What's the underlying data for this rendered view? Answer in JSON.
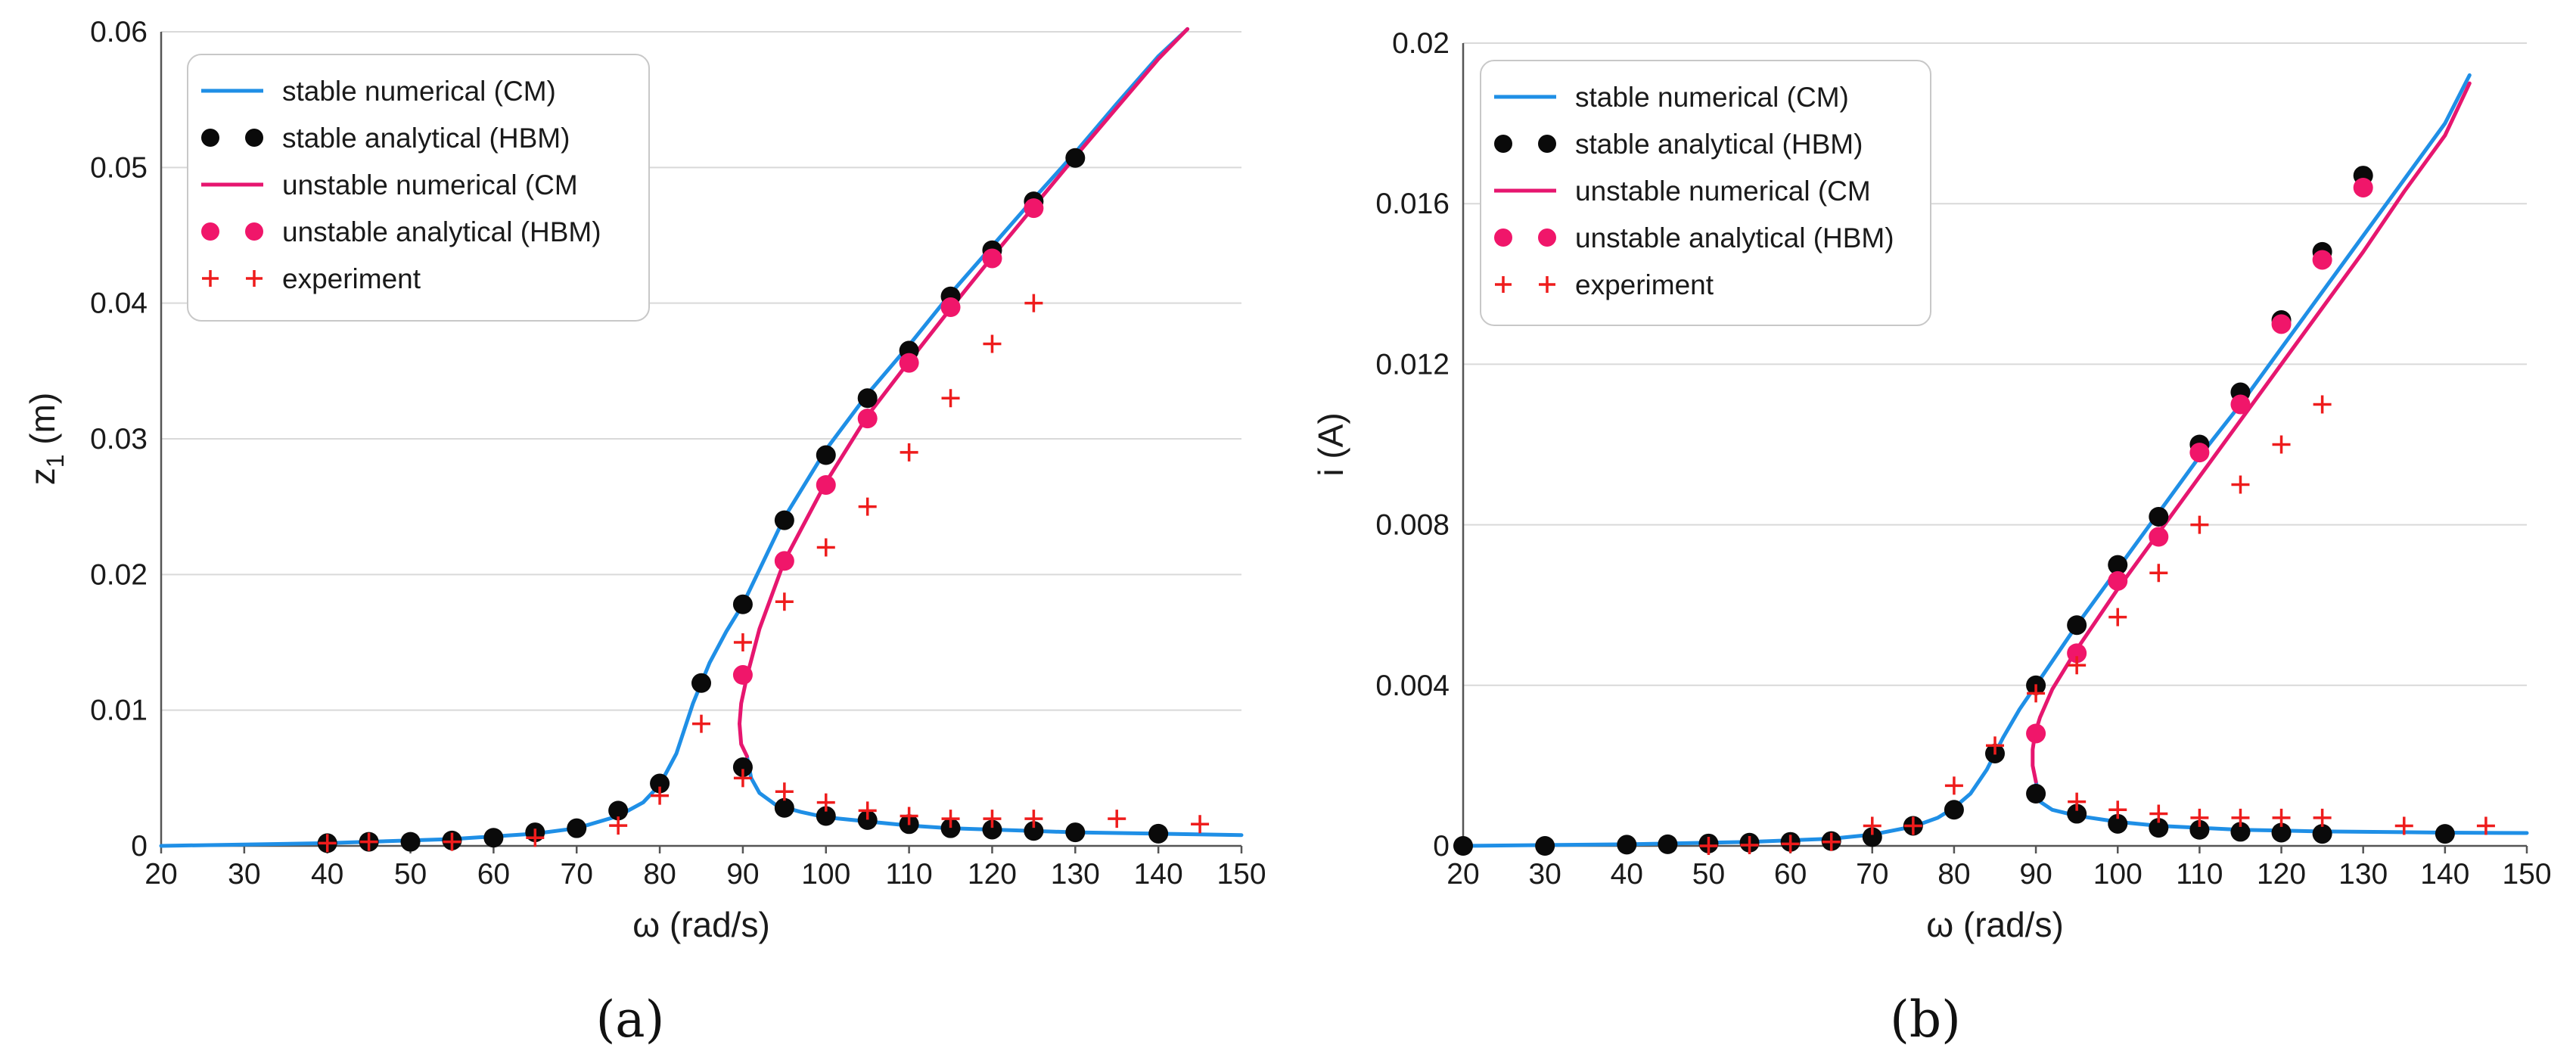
{
  "colors": {
    "stable_line": "#1f8fe6",
    "unstable_line": "#e6166f",
    "stable_dot": "#0a0a0a",
    "unstable_dot": "#f0166a",
    "experiment": "#ee1c1c",
    "grid": "#d9d9d9"
  },
  "legend": {
    "stable_numerical": "stable numerical (CM)",
    "stable_analytical": "stable analytical (HBM)",
    "unstable_numerical": "unstable numerical (CM",
    "unstable_analytical": "unstable analytical (HBM)",
    "experiment": "experiment"
  },
  "chart_data": [
    {
      "id": "a",
      "type": "line",
      "panel_label": "(a)",
      "xlabel": "ω (rad/s)",
      "ylabel_main": "z",
      "ylabel_sub": "1",
      "ylabel_rest": " (m)",
      "xlim": [
        20,
        150
      ],
      "ylim": [
        0,
        0.06
      ],
      "xticks": [
        20,
        30,
        40,
        50,
        60,
        70,
        80,
        90,
        100,
        110,
        120,
        130,
        140,
        150
      ],
      "xtick_labels": [
        "20",
        "30",
        "40",
        "50",
        "60",
        "70",
        "80",
        "90",
        "100",
        "110",
        "120",
        "130",
        "140",
        "150"
      ],
      "yticks": [
        0,
        0.01,
        0.02,
        0.03,
        0.04,
        0.05,
        0.06
      ],
      "ytick_labels": [
        "0",
        "0.01",
        "0.02",
        "0.03",
        "0.04",
        "0.05",
        "0.06"
      ],
      "series": [
        {
          "name": "stable numerical (CM)",
          "kind": "line",
          "color_key": "stable_line",
          "x": [
            20,
            40,
            55,
            65,
            70,
            75,
            78,
            80,
            82,
            84,
            86,
            88,
            90,
            95,
            100,
            105,
            110,
            115,
            120,
            125,
            130,
            135,
            140,
            143.5
          ],
          "y": [
            0,
            0.0002,
            0.0005,
            0.0009,
            0.0013,
            0.0022,
            0.0032,
            0.0045,
            0.0068,
            0.0105,
            0.0135,
            0.0158,
            0.0178,
            0.0242,
            0.0292,
            0.0333,
            0.0369,
            0.0407,
            0.0442,
            0.0477,
            0.0511,
            0.0547,
            0.0582,
            0.0602
          ]
        },
        {
          "name": "stable numerical (CM) lower",
          "kind": "line",
          "color_key": "stable_line",
          "x": [
            90.5,
            91,
            92,
            94,
            97,
            100,
            105,
            110,
            115,
            120,
            125,
            130,
            140,
            150
          ],
          "y": [
            0.0066,
            0.005,
            0.0039,
            0.003,
            0.0025,
            0.0021,
            0.0018,
            0.0015,
            0.0013,
            0.0012,
            0.0011,
            0.001,
            0.0009,
            0.0008
          ]
        },
        {
          "name": "unstable numerical (CM",
          "kind": "line",
          "color_key": "unstable_line",
          "x": [
            90.5,
            89.8,
            89.6,
            89.8,
            90.5,
            92,
            95,
            100,
            105,
            110,
            115,
            120,
            125,
            130,
            135,
            140,
            143.5
          ],
          "y": [
            0.0066,
            0.0075,
            0.009,
            0.0105,
            0.0125,
            0.016,
            0.021,
            0.0268,
            0.0317,
            0.0357,
            0.0396,
            0.0434,
            0.0471,
            0.0508,
            0.0544,
            0.058,
            0.0602
          ]
        },
        {
          "name": "stable analytical (HBM)",
          "kind": "dots",
          "color_key": "stable_dot",
          "x": [
            40,
            45,
            50,
            55,
            60,
            65,
            70,
            75,
            80,
            85,
            90,
            95,
            100,
            105,
            110,
            115,
            120,
            125,
            130,
            90,
            95,
            100,
            105,
            110,
            115,
            120,
            125,
            130,
            140
          ],
          "y": [
            0.0002,
            0.0003,
            0.0003,
            0.0004,
            0.0006,
            0.001,
            0.0013,
            0.0026,
            0.0046,
            0.012,
            0.0178,
            0.024,
            0.0288,
            0.033,
            0.0365,
            0.0405,
            0.0439,
            0.0475,
            0.0507,
            0.0058,
            0.0028,
            0.0022,
            0.0019,
            0.0016,
            0.0013,
            0.0012,
            0.0011,
            0.001,
            0.0009
          ]
        },
        {
          "name": "unstable analytical (HBM)",
          "kind": "dots",
          "color_key": "unstable_dot",
          "x": [
            90,
            95,
            100,
            105,
            110,
            115,
            120,
            125
          ],
          "y": [
            0.0126,
            0.021,
            0.0266,
            0.0315,
            0.0356,
            0.0397,
            0.0433,
            0.047
          ]
        },
        {
          "name": "experiment",
          "kind": "plus",
          "color_key": "experiment",
          "x": [
            40,
            45,
            55,
            65,
            75,
            80,
            85,
            90,
            90,
            95,
            95,
            100,
            100,
            105,
            105,
            110,
            110,
            115,
            115,
            120,
            120,
            125,
            125,
            135,
            145
          ],
          "y": [
            0.0002,
            0.0003,
            0.0003,
            0.0006,
            0.0015,
            0.0037,
            0.009,
            0.015,
            0.005,
            0.018,
            0.004,
            0.022,
            0.0032,
            0.025,
            0.0026,
            0.029,
            0.0022,
            0.033,
            0.002,
            0.037,
            0.002,
            0.04,
            0.002,
            0.002,
            0.0016
          ]
        }
      ]
    },
    {
      "id": "b",
      "type": "line",
      "panel_label": "(b)",
      "xlabel": "ω (rad/s)",
      "ylabel_main": "i (A)",
      "ylabel_sub": "",
      "ylabel_rest": "",
      "xlim": [
        20,
        150
      ],
      "ylim": [
        0,
        0.02
      ],
      "xticks": [
        20,
        30,
        40,
        50,
        60,
        70,
        80,
        90,
        100,
        110,
        120,
        130,
        140,
        150
      ],
      "xtick_labels": [
        "20",
        "30",
        "40",
        "50",
        "60",
        "70",
        "80",
        "90",
        "100",
        "110",
        "120",
        "130",
        "140",
        "150"
      ],
      "yticks": [
        0,
        0.004,
        0.008,
        0.012,
        0.016,
        0.02
      ],
      "ytick_labels": [
        "0",
        "0.004",
        "0.008",
        "0.012",
        "0.016",
        "0.02"
      ],
      "series": [
        {
          "name": "stable numerical (CM)",
          "kind": "line",
          "color_key": "stable_line",
          "x": [
            20,
            40,
            55,
            65,
            70,
            75,
            78,
            80,
            82,
            84,
            86,
            88,
            90,
            95,
            100,
            105,
            110,
            115,
            120,
            125,
            130,
            135,
            140,
            143
          ],
          "y": [
            0,
            4e-05,
            0.0001,
            0.00018,
            0.00028,
            0.00048,
            0.0007,
            0.00095,
            0.0013,
            0.0019,
            0.0027,
            0.0034,
            0.004,
            0.0055,
            0.0069,
            0.0083,
            0.0097,
            0.011,
            0.0124,
            0.0138,
            0.0152,
            0.0166,
            0.018,
            0.0192
          ]
        },
        {
          "name": "stable numerical (CM) lower",
          "kind": "line",
          "color_key": "stable_line",
          "x": [
            90,
            90.5,
            92,
            95,
            100,
            105,
            110,
            115,
            120,
            125,
            130,
            140,
            150
          ],
          "y": [
            0.0016,
            0.0011,
            0.0009,
            0.00075,
            0.0006,
            0.0005,
            0.00045,
            0.0004,
            0.00038,
            0.00036,
            0.00035,
            0.00033,
            0.00032
          ]
        },
        {
          "name": "unstable numerical (CM",
          "kind": "line",
          "color_key": "unstable_line",
          "x": [
            90,
            89.6,
            89.6,
            89.9,
            90.5,
            92,
            95,
            100,
            105,
            110,
            115,
            120,
            125,
            130,
            135,
            140,
            143
          ],
          "y": [
            0.0016,
            0.002,
            0.0024,
            0.0028,
            0.0032,
            0.0039,
            0.0049,
            0.0064,
            0.0078,
            0.0092,
            0.0106,
            0.012,
            0.0134,
            0.0148,
            0.0163,
            0.0177,
            0.019
          ]
        },
        {
          "name": "stable analytical (HBM)",
          "kind": "dots",
          "color_key": "stable_dot",
          "x": [
            20,
            30,
            40,
            45,
            50,
            55,
            60,
            65,
            70,
            75,
            80,
            85,
            90,
            95,
            100,
            105,
            110,
            115,
            120,
            125,
            130,
            90,
            95,
            100,
            105,
            110,
            115,
            120,
            125,
            140
          ],
          "y": [
            0,
            0,
            3e-05,
            4e-05,
            6e-05,
            8e-05,
            0.0001,
            0.00012,
            0.00022,
            0.0005,
            0.0009,
            0.0023,
            0.004,
            0.0055,
            0.007,
            0.0082,
            0.01,
            0.0113,
            0.0131,
            0.0148,
            0.0167,
            0.0013,
            0.0008,
            0.00055,
            0.00045,
            0.0004,
            0.00035,
            0.00033,
            0.0003,
            0.0003
          ]
        },
        {
          "name": "unstable analytical (HBM)",
          "kind": "dots",
          "color_key": "unstable_dot",
          "x": [
            90,
            95,
            100,
            105,
            110,
            115,
            120,
            125,
            130
          ],
          "y": [
            0.0028,
            0.0048,
            0.0066,
            0.0077,
            0.0098,
            0.011,
            0.013,
            0.0146,
            0.0164
          ]
        },
        {
          "name": "experiment",
          "kind": "plus",
          "color_key": "experiment",
          "x": [
            50,
            55,
            60,
            65,
            70,
            75,
            80,
            85,
            90,
            95,
            95,
            100,
            100,
            105,
            105,
            110,
            110,
            115,
            115,
            120,
            120,
            125,
            125,
            135,
            145
          ],
          "y": [
            0,
            2e-05,
            5e-05,
            0.0001,
            0.0005,
            0.0005,
            0.0015,
            0.0025,
            0.0038,
            0.0045,
            0.0011,
            0.0057,
            0.0009,
            0.0068,
            0.0008,
            0.008,
            0.0007,
            0.009,
            0.0007,
            0.01,
            0.0007,
            0.011,
            0.0007,
            0.0005,
            0.0005
          ]
        }
      ]
    }
  ]
}
